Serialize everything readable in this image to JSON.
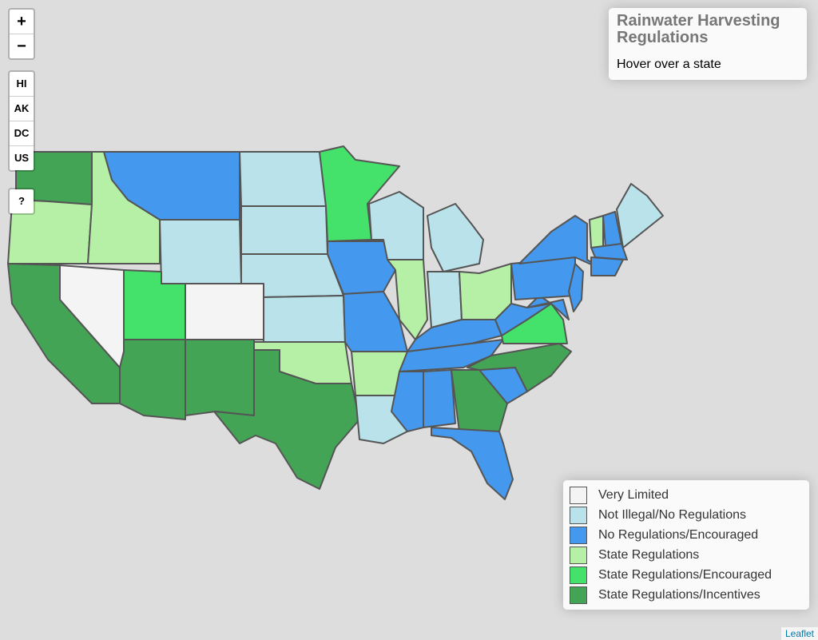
{
  "zoom_controls": [
    "+",
    "−"
  ],
  "region_buttons": [
    "HI",
    "AK",
    "DC",
    "US"
  ],
  "help_button": "?",
  "info": {
    "title": "Rainwater Harvesting Regulations",
    "hint": "Hover over a state"
  },
  "legend": [
    {
      "label": "Very Limited",
      "color": "#f4f4f4"
    },
    {
      "label": "Not Illegal/No Regulations",
      "color": "#b9e2ea"
    },
    {
      "label": "No Regulations/Encouraged",
      "color": "#4499ee"
    },
    {
      "label": "State Regulations",
      "color": "#b6f0a6"
    },
    {
      "label": "State Regulations/Encouraged",
      "color": "#44e26a"
    },
    {
      "label": "State Regulations/Incentives",
      "color": "#44a455"
    }
  ],
  "attribution": "Leaflet"
}
